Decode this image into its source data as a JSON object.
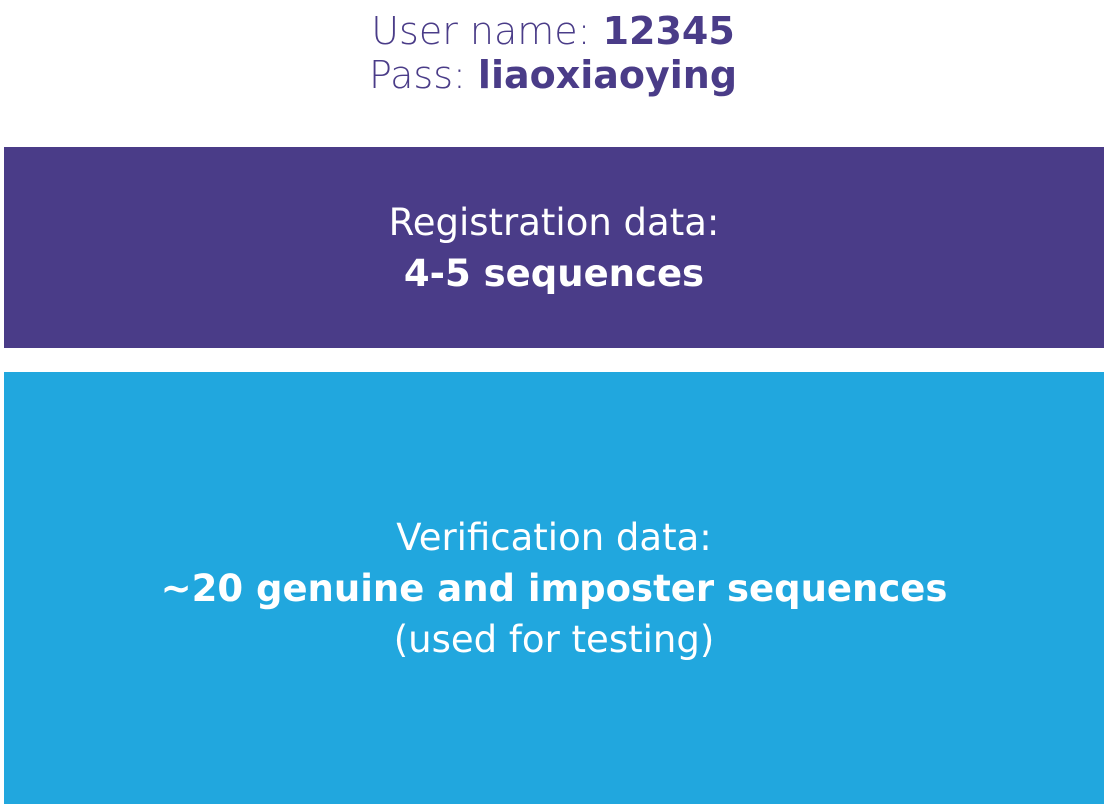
{
  "credentials": {
    "username_label": "User name: ",
    "username_value": "12345",
    "password_label": "Pass: ",
    "password_value": "liaoxiaoying"
  },
  "registration": {
    "title": "Registration data:",
    "detail": "4-5 sequences"
  },
  "verification": {
    "title": "Verification data:",
    "detail": "~20 genuine and imposter sequences",
    "note": "(used for testing)"
  },
  "colors": {
    "purple": "#4a3c88",
    "blue": "#21a7de",
    "text_light": "#ffffff"
  }
}
